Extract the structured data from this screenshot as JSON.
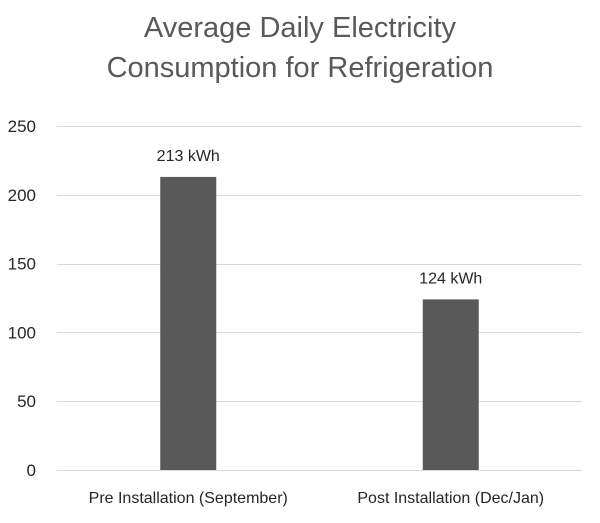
{
  "chart_data": {
    "type": "bar",
    "title_lines": [
      "Average Daily Electricity",
      "Consumption for Refrigeration"
    ],
    "categories": [
      "Pre Installation (September)",
      "Post Installation (Dec/Jan)"
    ],
    "values": [
      213,
      124
    ],
    "data_labels": [
      "213 kWh",
      "124 kWh"
    ],
    "xlabel": "",
    "ylabel": "",
    "ylim": [
      0,
      250
    ],
    "yticks": [
      0,
      50,
      100,
      150,
      200,
      250
    ],
    "ytick_labels": [
      "0",
      "50",
      "100",
      "150",
      "200",
      "250"
    ],
    "grid": true,
    "legend": "none",
    "bar_color": "#595959",
    "grid_color": "#d9d9d9"
  }
}
